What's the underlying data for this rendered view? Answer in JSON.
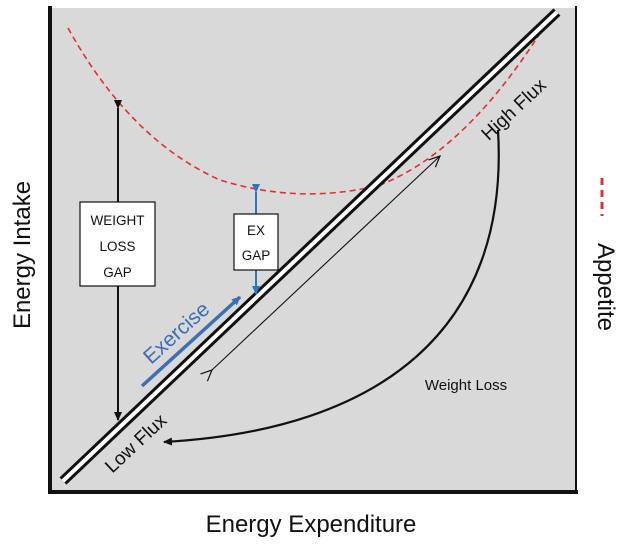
{
  "axes": {
    "x_label": "Energy Expenditure",
    "y_label": "Energy Intake"
  },
  "legend": {
    "label": "Appetite",
    "color": "#e0312f",
    "style": "dashed"
  },
  "line_labels": {
    "high_flux": "High Flux",
    "low_flux": "Low Flux",
    "exercise": "Exercise",
    "weight_loss": "Weight Loss"
  },
  "gap_boxes": {
    "weight_loss_gap": [
      "WEIGHT",
      "LOSS",
      "GAP"
    ],
    "ex_gap": [
      "EX",
      "GAP"
    ]
  },
  "colors": {
    "plot_background": "#d9d9d9",
    "appetite_curve": "#e0312f",
    "exercise": "#3b6fb6",
    "ex_gap_arrow": "#2f74c0",
    "frame": "#111111"
  }
}
